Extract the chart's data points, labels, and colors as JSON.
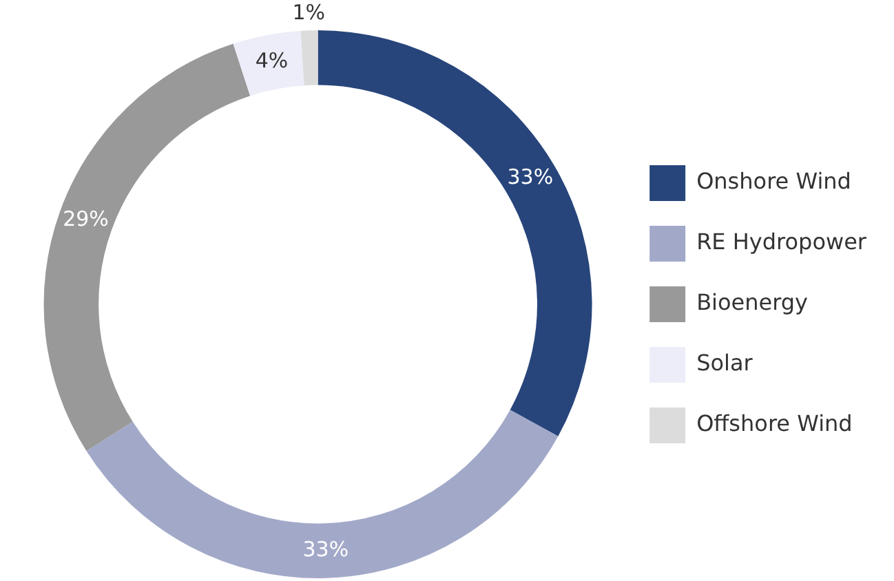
{
  "chart_data": {
    "type": "donut",
    "categories": [
      "Onshore Wind",
      "RE Hydropower",
      "Bioenergy",
      "Solar",
      "Offshore Wind"
    ],
    "values": [
      33,
      33,
      29,
      4,
      1
    ],
    "colors": [
      "#27457b",
      "#a2a9c8",
      "#999999",
      "#ecedf8",
      "#dcdcdc"
    ],
    "value_labels": [
      "33%",
      "33%",
      "29%",
      "4%",
      "1%"
    ],
    "legend": "right"
  }
}
